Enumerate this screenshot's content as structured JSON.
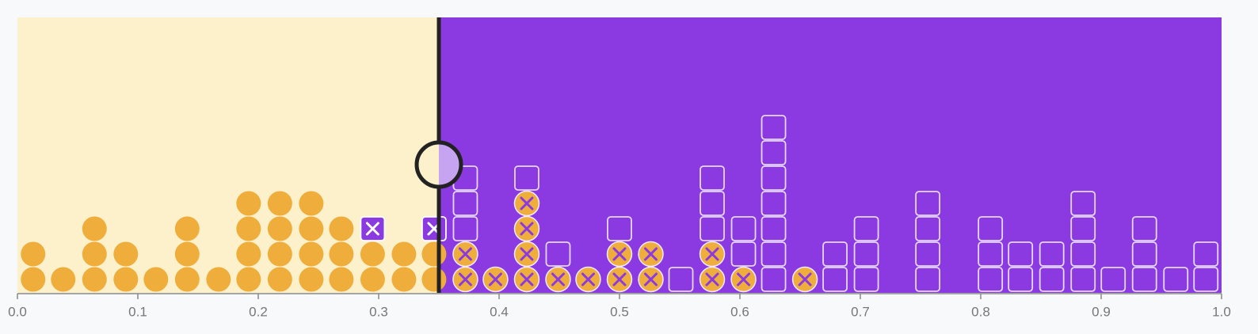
{
  "chart_data": {
    "type": "threshold-dotplot",
    "xlim": [
      0,
      1
    ],
    "xticks": [
      {
        "value": 0,
        "label": "0.0"
      },
      0.1,
      0.2,
      0.3,
      0.4,
      0.5,
      0.6,
      0.7,
      0.8,
      0.9,
      {
        "value": 1,
        "label": "1.0"
      }
    ],
    "threshold": 0.35,
    "positive_x": [
      0.013,
      0.013,
      0.038,
      0.064,
      0.064,
      0.064,
      0.09,
      0.09,
      0.115,
      0.141,
      0.141,
      0.141,
      0.167,
      0.192,
      0.192,
      0.192,
      0.192,
      0.218,
      0.218,
      0.218,
      0.218,
      0.244,
      0.244,
      0.244,
      0.244,
      0.269,
      0.269,
      0.269,
      0.295,
      0.295,
      0.321,
      0.321,
      0.346,
      0.346,
      0.372,
      0.372,
      0.397,
      0.423,
      0.423,
      0.423,
      0.423,
      0.449,
      0.474,
      0.5,
      0.5,
      0.526,
      0.526,
      0.577,
      0.577,
      0.603,
      0.654
    ],
    "negative_x": [
      0.295,
      0.346,
      0.372,
      0.372,
      0.372,
      0.423,
      0.449,
      0.5,
      0.551,
      0.577,
      0.577,
      0.577,
      0.603,
      0.603,
      0.628,
      0.628,
      0.628,
      0.628,
      0.628,
      0.628,
      0.628,
      0.679,
      0.679,
      0.705,
      0.705,
      0.705,
      0.756,
      0.756,
      0.756,
      0.756,
      0.808,
      0.808,
      0.808,
      0.833,
      0.833,
      0.859,
      0.859,
      0.885,
      0.885,
      0.885,
      0.885,
      0.91,
      0.936,
      0.936,
      0.936,
      0.962,
      0.987,
      0.987
    ],
    "positive_color": "#efad3c",
    "negative_color": "#8a3ae0"
  }
}
